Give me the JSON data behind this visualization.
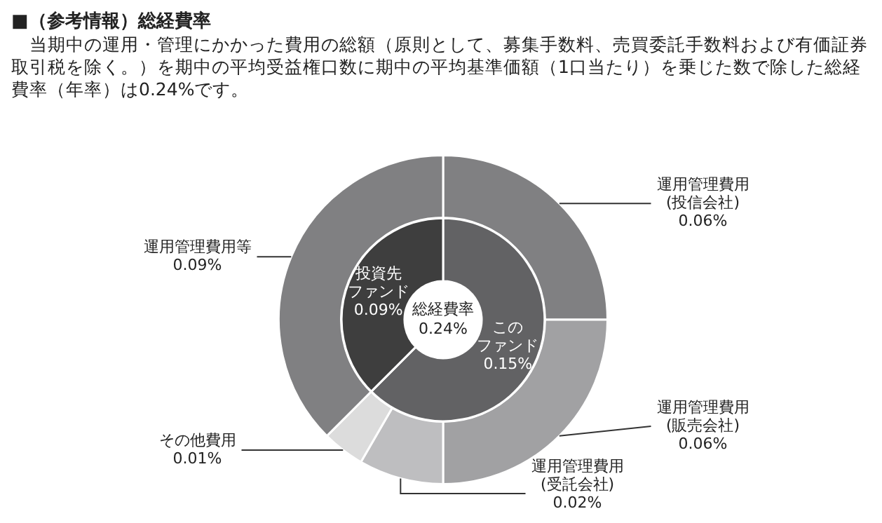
{
  "chart_data": [
    {
      "type": "donut",
      "title": "■（参考情報）総経費率",
      "subtitle": "　当期中の運用・管理にかかった費用の総額（原則として、募集手数料、売買委託手数料および有価証券取引税を除く。）を期中の平均受益権口数に期中の平均基準価額（1口当たり）を乗じた数で除した総経費率（年率）は0.24%です。",
      "categories": [
        "運用管理費用(投信会社)",
        "運用管理費用(販売会社)",
        "運用管理費用(受託会社)",
        "その他費用",
        "運用管理費用等"
      ],
      "values": [
        0.06,
        0.06,
        0.02,
        0.01,
        0.09
      ],
      "colors": [
        "#808082",
        "#a1a1a3",
        "#bebec0",
        "#dcdcdc",
        "#808082"
      ],
      "value_labels": [
        "0.06%",
        "0.06%",
        "0.02%",
        "0.01%",
        "0.09%"
      ]
    },
    {
      "type": "donut",
      "annotations": [
        "総経費率\n0.24%"
      ],
      "categories": [
        "このファンド",
        "投資先ファンド"
      ],
      "values": [
        0.15,
        0.09
      ],
      "colors": [
        "#626264",
        "#3e3e3e"
      ],
      "value_labels": [
        "0.15%",
        "0.09%"
      ]
    }
  ]
}
